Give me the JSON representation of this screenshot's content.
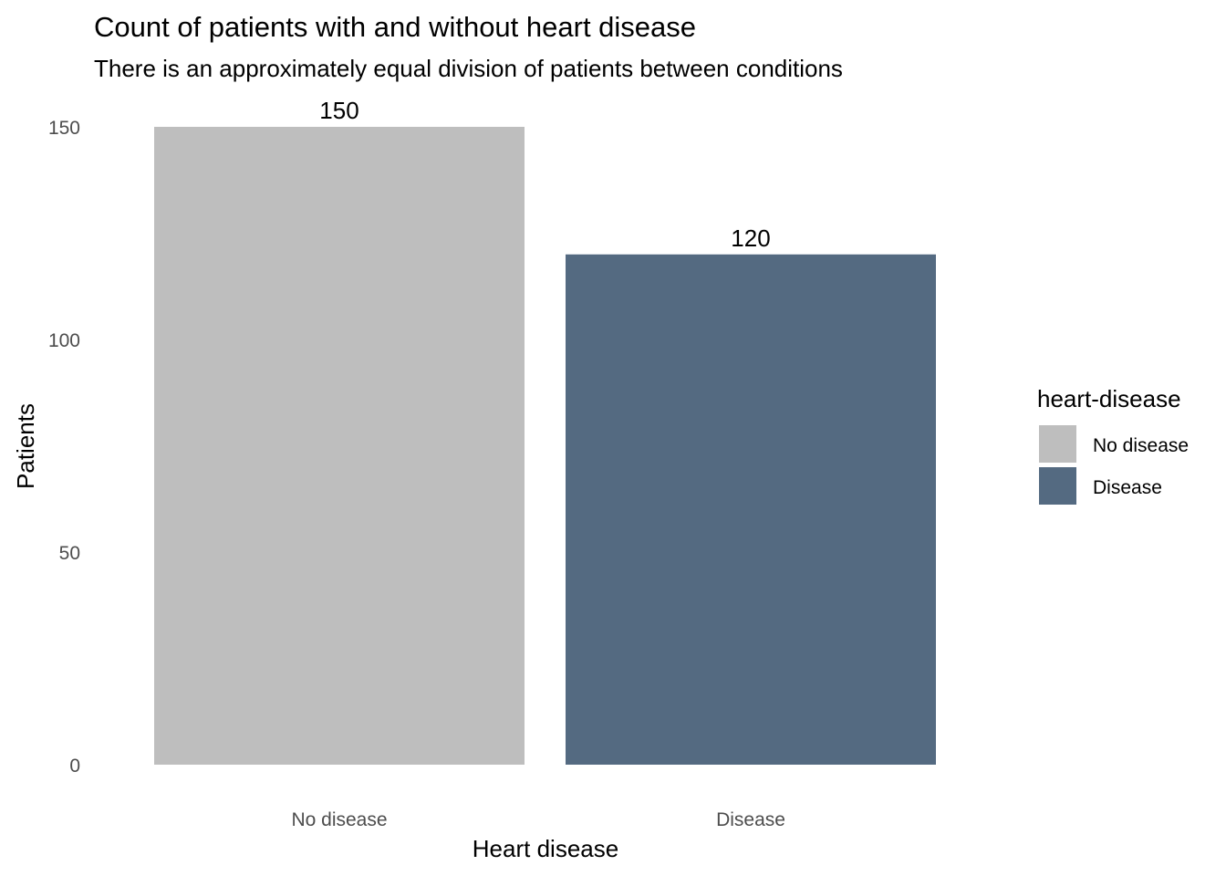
{
  "chart_data": {
    "type": "bar",
    "title": "Count of patients with and without heart disease",
    "subtitle": "There is an approximately equal division of patients between conditions",
    "xlabel": "Heart disease",
    "ylabel": "Patients",
    "categories": [
      "No disease",
      "Disease"
    ],
    "values": [
      150,
      120
    ],
    "value_labels": [
      "150",
      "120"
    ],
    "colors": [
      "#bebebe",
      "#546a81"
    ],
    "ylim": [
      0,
      150
    ],
    "yticks": [
      0,
      50,
      100,
      150
    ],
    "ytick_labels": [
      "0",
      "50",
      "100",
      "150"
    ],
    "grid": false,
    "legend": {
      "title": "heart-disease",
      "position": "right",
      "entries": [
        {
          "label": "No disease",
          "color": "#bebebe"
        },
        {
          "label": "Disease",
          "color": "#546a81"
        }
      ]
    }
  }
}
